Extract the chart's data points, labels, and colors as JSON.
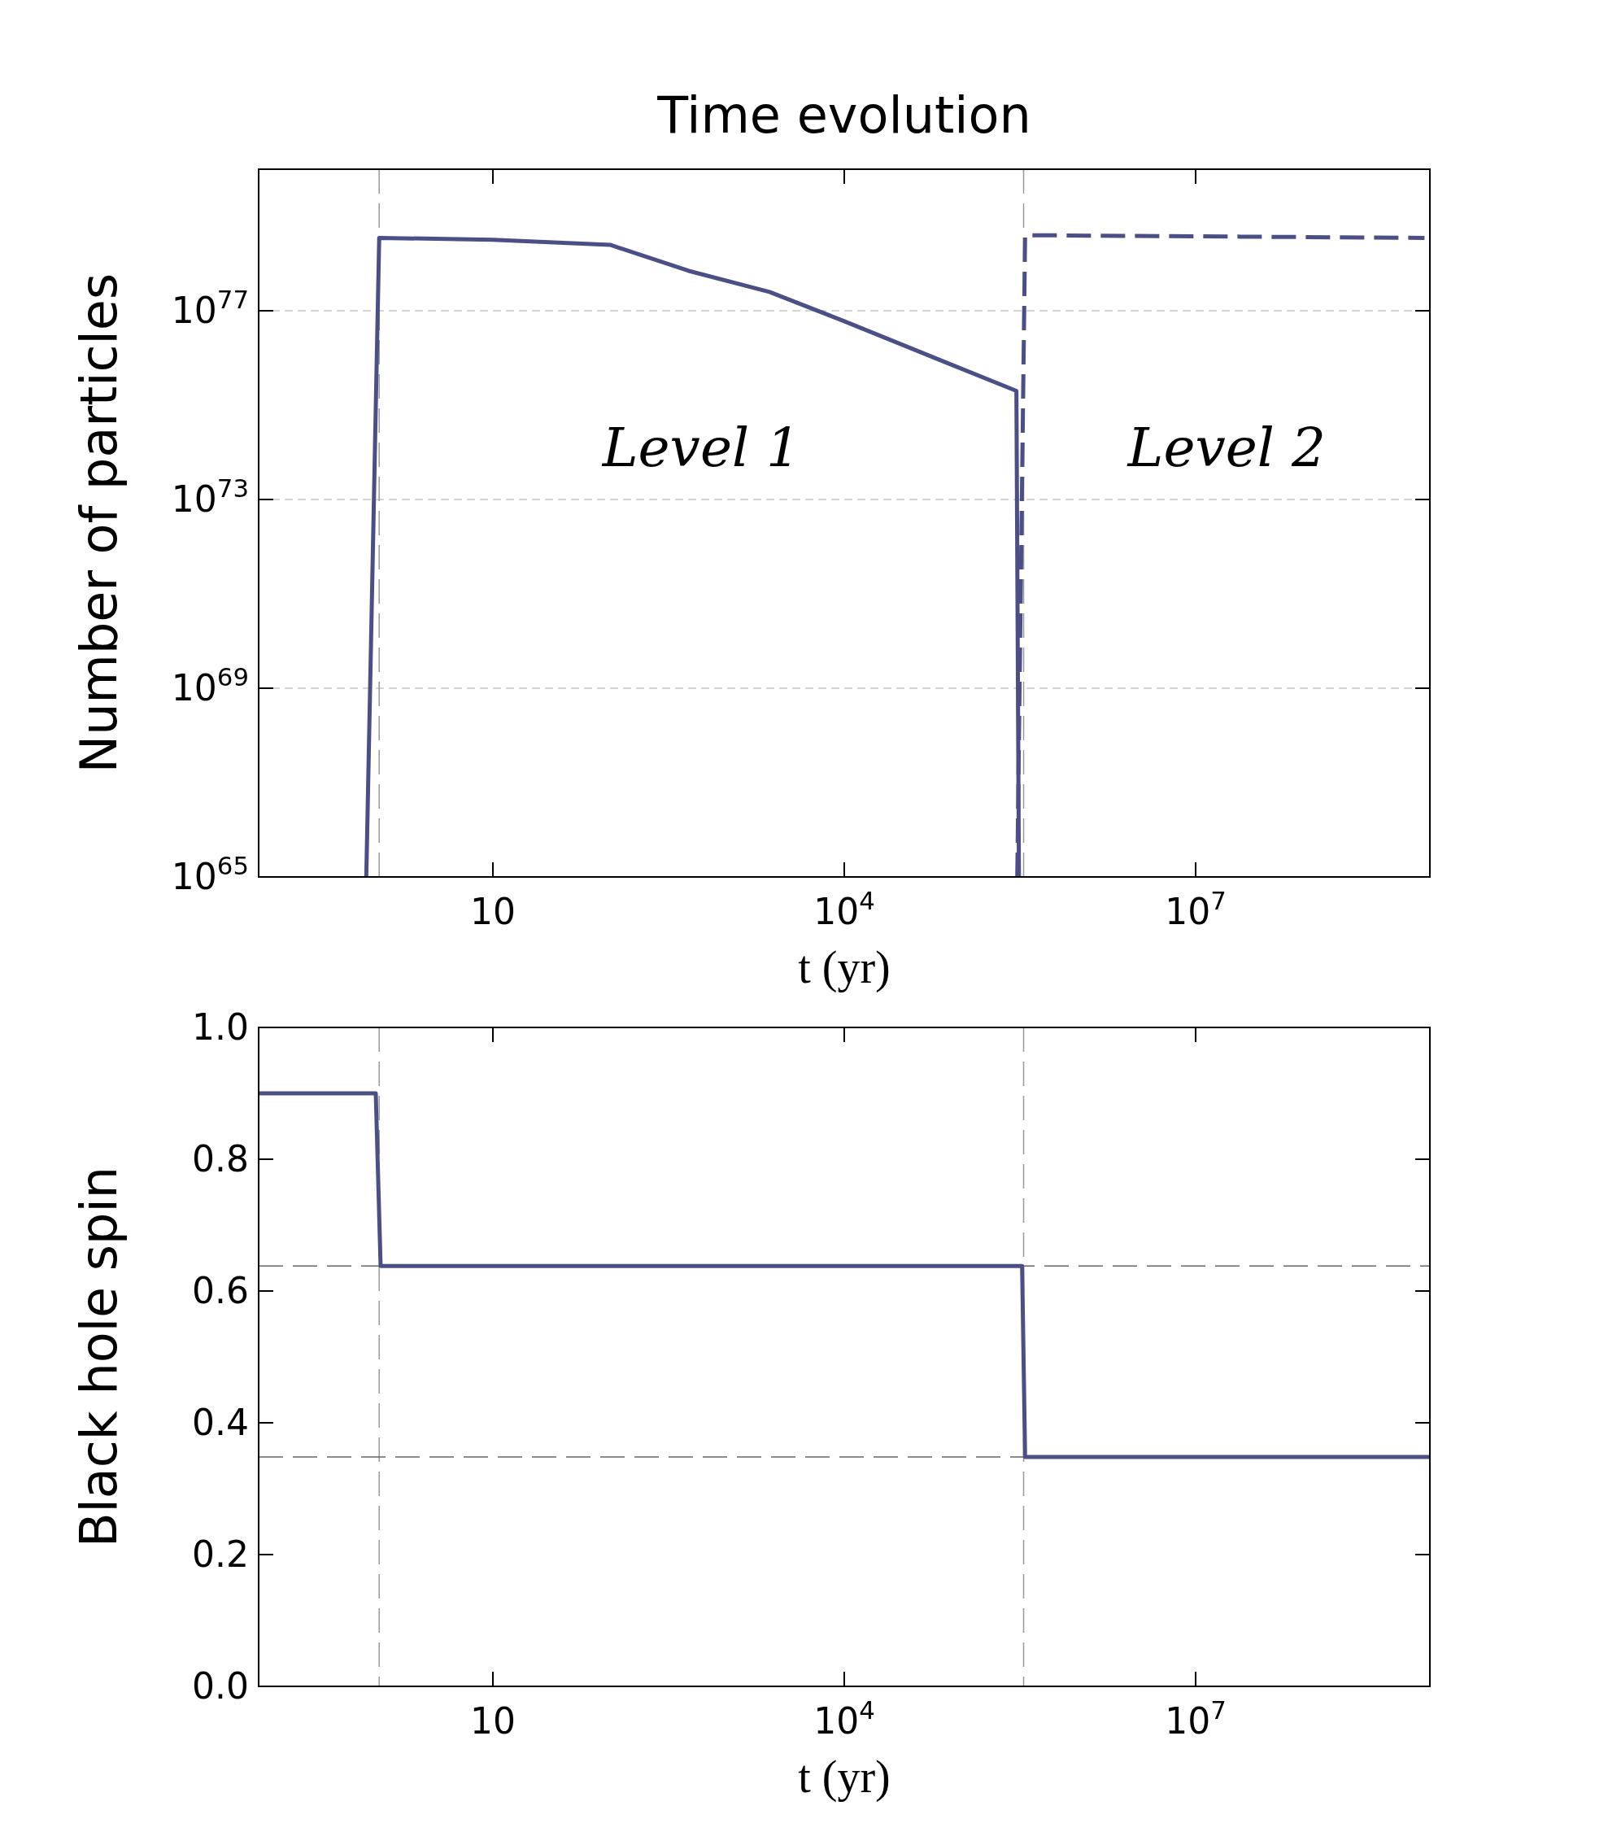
{
  "chart_data": [
    {
      "type": "line",
      "title": "Time evolution",
      "xlabel": "t (yr)",
      "ylabel": "Number of particles",
      "log": "xy",
      "grid": "y",
      "xlim": [
        0.1,
        1000000000
      ],
      "ylim": [
        1e+65,
        1e+80
      ],
      "xticks": [
        {
          "value": 10,
          "label": "10"
        },
        {
          "value": 10000,
          "label": "10$^{4}$"
        },
        {
          "value": 10000000,
          "label": "10$^{7}$"
        }
      ],
      "yticks": [
        {
          "value": 1e+65,
          "label": "10$^{65}$"
        },
        {
          "value": 1e+69,
          "label": "10$^{69}$"
        },
        {
          "value": 1e+73,
          "label": "10$^{73}$"
        },
        {
          "value": 1e+77,
          "label": "10$^{77}$"
        }
      ],
      "ref_lines": [
        {
          "axis": "x",
          "value": 1.07,
          "color": "#999999",
          "line_style": "dashed"
        },
        {
          "axis": "x",
          "value": 340000,
          "color": "#999999",
          "line_style": "dashed"
        }
      ],
      "annotations": [
        "Level 1",
        "Level 2"
      ],
      "series": [
        {
          "color": "#4b4f86",
          "line_style": "solid",
          "x": [
            0.83,
            1.07,
            10,
            100,
            470,
            2300,
            10000,
            74000,
            295000,
            310000
          ],
          "values": [
            1e+65,
            3.5e+78,
            3.2e+78,
            2.5e+78,
            7e+77,
            2.5e+77,
            6e+76,
            8e+75,
            2e+75,
            1e+65
          ]
        },
        {
          "color": "#4b4f86",
          "line_style": "dashed",
          "x": [
            300000,
            350000,
            900000000
          ],
          "values": [
            1e+65,
            4e+78,
            3.5e+78
          ]
        }
      ]
    },
    {
      "type": "line",
      "xlabel": "t (yr)",
      "ylabel": "Black hole spin",
      "log": "x",
      "grid": false,
      "xlim": [
        0.1,
        1000000000
      ],
      "ylim": [
        0,
        1
      ],
      "xticks": [
        {
          "value": 10,
          "label": "10"
        },
        {
          "value": 10000,
          "label": "10$^{4}$"
        },
        {
          "value": 10000000,
          "label": "10$^{7}$"
        }
      ],
      "yticks": [
        {
          "value": 0,
          "label": "0.0"
        },
        0.2,
        0.4,
        0.6,
        0.8,
        {
          "value": 1,
          "label": "1.0"
        }
      ],
      "ref_lines": [
        {
          "axis": "x",
          "value": 1.07,
          "color": "#999999",
          "line_style": "dashed"
        },
        {
          "axis": "x",
          "value": 340000,
          "color": "#999999",
          "line_style": "dashed"
        },
        {
          "axis": "y",
          "value": 0.638,
          "color": "#666666",
          "line_style": "dashed"
        },
        {
          "axis": "y",
          "value": 0.348,
          "color": "#666666",
          "line_style": "dashed"
        }
      ],
      "series": [
        {
          "color": "#4b4f86",
          "line_style": "solid",
          "x": [
            0.1,
            1.0,
            1.1,
            330000,
            350000,
            1000000000
          ],
          "values": [
            0.9,
            0.9,
            0.638,
            0.638,
            0.348,
            0.348
          ]
        }
      ]
    }
  ]
}
